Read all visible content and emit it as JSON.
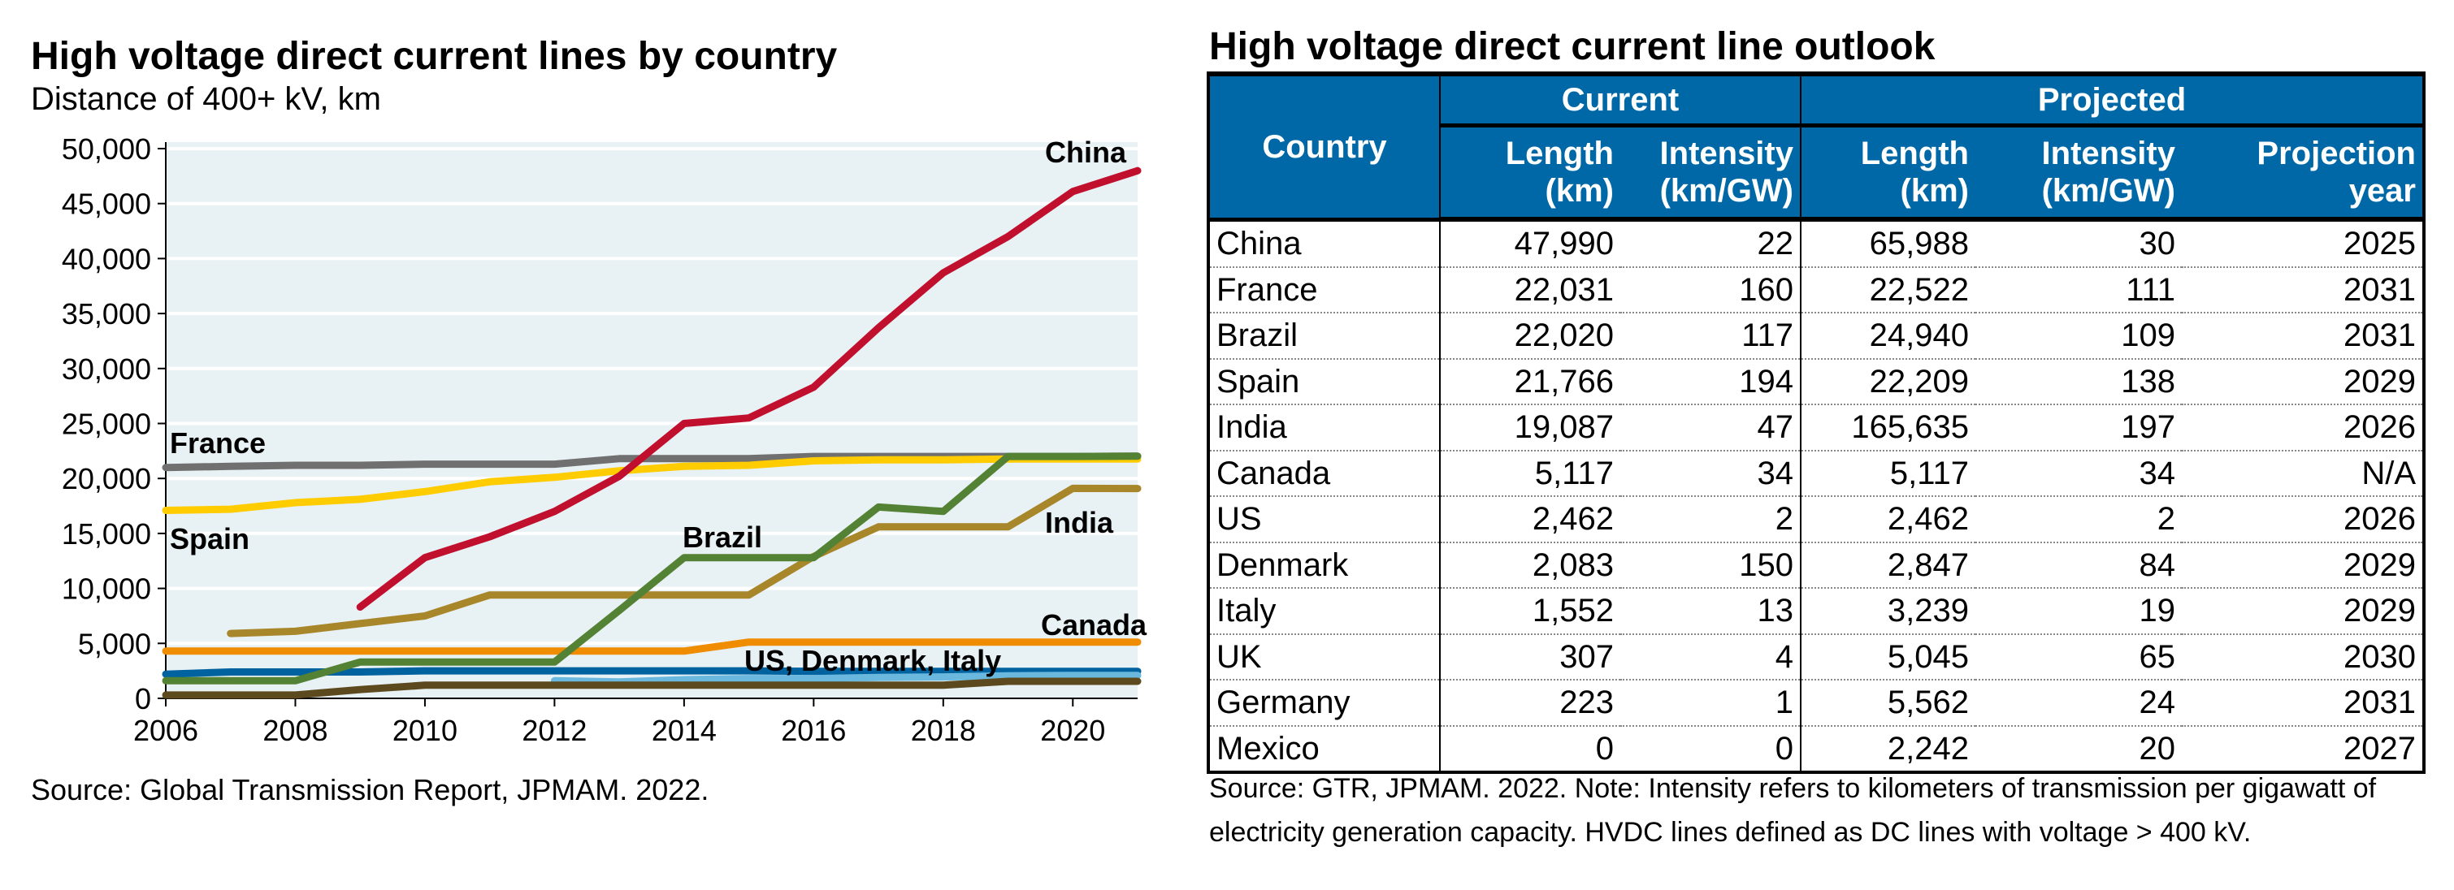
{
  "left_panel": {
    "title": "High voltage direct current lines by country",
    "subtitle": "Distance of 400+ kV, km",
    "source": "Source: Global Transmission Report, JPMAM. 2022."
  },
  "chart_data": {
    "type": "line",
    "title": "High voltage direct current lines by country",
    "ylabel": "Distance of 400+ kV, km",
    "xlabel": "",
    "x": [
      2006,
      2007,
      2008,
      2009,
      2010,
      2011,
      2012,
      2013,
      2014,
      2015,
      2016,
      2017,
      2018,
      2019,
      2020,
      2021
    ],
    "xlim": [
      2006,
      2021
    ],
    "ylim": [
      0,
      50000
    ],
    "xticks": [
      "2006",
      "2008",
      "2010",
      "2012",
      "2014",
      "2016",
      "2018",
      "2020"
    ],
    "yticks": [
      "0",
      "5,000",
      "10,000",
      "15,000",
      "20,000",
      "25,000",
      "30,000",
      "35,000",
      "40,000",
      "45,000",
      "50,000"
    ],
    "grid": true,
    "legend": "none (direct labels)",
    "background": "#E8F1F4",
    "series": [
      {
        "name": "France",
        "color": "#707070",
        "values": [
          21000,
          21100,
          21200,
          21200,
          21300,
          21300,
          21300,
          21800,
          21800,
          21800,
          22000,
          22000,
          22000,
          22000,
          22000,
          22031
        ]
      },
      {
        "name": "Spain",
        "color": "#FFCC00",
        "values": [
          17100,
          17200,
          17800,
          18100,
          18800,
          19700,
          20100,
          20700,
          21100,
          21200,
          21600,
          21700,
          21700,
          21766,
          21766,
          21766
        ]
      },
      {
        "name": "Canada",
        "color": "#F08C00",
        "values": [
          4300,
          4300,
          4300,
          4300,
          4300,
          4300,
          4300,
          4300,
          4300,
          5117,
          5117,
          5117,
          5117,
          5117,
          5117,
          5117
        ]
      },
      {
        "name": "US",
        "color": "#0063A0",
        "values": [
          2200,
          2400,
          2400,
          2400,
          2500,
          2500,
          2500,
          2500,
          2500,
          2500,
          2462,
          2462,
          2462,
          2462,
          2462,
          2462
        ]
      },
      {
        "name": "Denmark",
        "color": "#6BB8DE",
        "values": [
          null,
          null,
          null,
          null,
          null,
          null,
          1600,
          1500,
          1700,
          1800,
          1800,
          1900,
          1950,
          2050,
          2083,
          2083
        ]
      },
      {
        "name": "Italy",
        "color": "#5C4A1E",
        "values": [
          300,
          300,
          300,
          800,
          1200,
          1200,
          1200,
          1200,
          1200,
          1200,
          1200,
          1200,
          1200,
          1550,
          1552,
          1552
        ]
      },
      {
        "name": "India",
        "color": "#A8862A",
        "values": [
          null,
          5900,
          6100,
          6800,
          7500,
          9400,
          9400,
          9400,
          9400,
          9400,
          12900,
          15600,
          15600,
          15600,
          19100,
          19087
        ]
      },
      {
        "name": "Brazil",
        "color": "#548235",
        "values": [
          1600,
          1600,
          1600,
          3300,
          3300,
          3300,
          3300,
          8000,
          12800,
          12800,
          12800,
          17400,
          17000,
          22000,
          22000,
          22020
        ]
      },
      {
        "name": "China",
        "color": "#C0102E",
        "values": [
          null,
          null,
          null,
          8300,
          12800,
          14700,
          17000,
          20200,
          25000,
          25500,
          28300,
          33700,
          38700,
          42000,
          46100,
          47990
        ]
      }
    ],
    "annotations": [
      {
        "key": "china",
        "text": "China"
      },
      {
        "key": "france",
        "text": "France"
      },
      {
        "key": "spain",
        "text": "Spain"
      },
      {
        "key": "brazil",
        "text": "Brazil"
      },
      {
        "key": "india",
        "text": "India"
      },
      {
        "key": "canada",
        "text": "Canada"
      },
      {
        "key": "usdkit",
        "text": "US, Denmark, Italy"
      }
    ]
  },
  "table": {
    "title": "High voltage direct current line outlook",
    "header_country": "Country",
    "group_current": "Current",
    "group_projected": "Projected",
    "col_length": "Length",
    "col_length_unit": "(km)",
    "col_intensity": "Intensity",
    "col_intensity_unit": "(km/GW)",
    "col_projection": "Projection",
    "col_projection_unit": "year",
    "rows": [
      [
        "China",
        "47,990",
        "22",
        "65,988",
        "30",
        "2025"
      ],
      [
        "France",
        "22,031",
        "160",
        "22,522",
        "111",
        "2031"
      ],
      [
        "Brazil",
        "22,020",
        "117",
        "24,940",
        "109",
        "2031"
      ],
      [
        "Spain",
        "21,766",
        "194",
        "22,209",
        "138",
        "2029"
      ],
      [
        "India",
        "19,087",
        "47",
        "165,635",
        "197",
        "2026"
      ],
      [
        "Canada",
        "5,117",
        "34",
        "5,117",
        "34",
        "N/A"
      ],
      [
        "US",
        "2,462",
        "2",
        "2,462",
        "2",
        "2026"
      ],
      [
        "Denmark",
        "2,083",
        "150",
        "2,847",
        "84",
        "2029"
      ],
      [
        "Italy",
        "1,552",
        "13",
        "3,239",
        "19",
        "2029"
      ],
      [
        "UK",
        "307",
        "4",
        "5,045",
        "65",
        "2030"
      ],
      [
        "Germany",
        "223",
        "1",
        "5,562",
        "24",
        "2031"
      ],
      [
        "Mexico",
        "0",
        "0",
        "2,242",
        "20",
        "2027"
      ]
    ],
    "note": "Source: GTR, JPMAM. 2022. Note: Intensity refers to kilometers of transmission per gigawatt of electricity generation capacity. HVDC lines defined as DC lines with voltage > 400 kV."
  }
}
